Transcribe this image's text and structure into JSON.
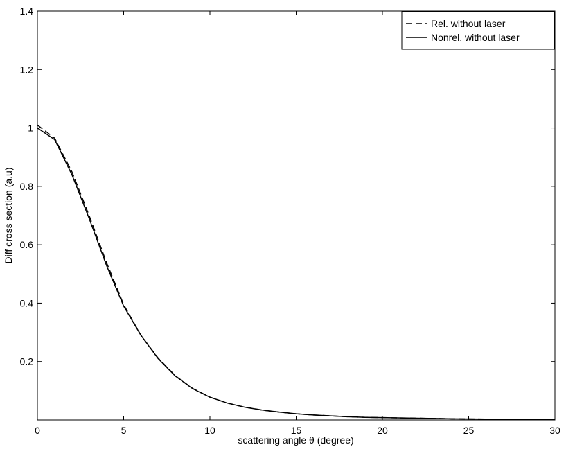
{
  "chart_data": {
    "type": "line",
    "xlabel": "scattering angle θ (degree)",
    "ylabel": "Diff cross section (a.u)",
    "x": [
      0,
      1,
      2,
      3,
      4,
      5,
      6,
      7,
      8,
      9,
      10,
      11,
      12,
      13,
      14,
      15,
      16,
      17,
      18,
      19,
      20,
      22,
      24,
      26,
      28,
      30
    ],
    "series": [
      {
        "name": "Rel. without laser",
        "color": "#000000",
        "linestyle": "dashed",
        "values": [
          1.01,
          0.965,
          0.85,
          0.7,
          0.54,
          0.395,
          0.29,
          0.212,
          0.151,
          0.108,
          0.078,
          0.058,
          0.044,
          0.034,
          0.027,
          0.021,
          0.017,
          0.014,
          0.011,
          0.009,
          0.008,
          0.006,
          0.004,
          0.003,
          0.003,
          0.002
        ]
      },
      {
        "name": "Nonrel. without laser",
        "color": "#000000",
        "linestyle": "solid",
        "values": [
          1.0,
          0.96,
          0.84,
          0.69,
          0.53,
          0.39,
          0.29,
          0.21,
          0.15,
          0.107,
          0.078,
          0.058,
          0.044,
          0.034,
          0.027,
          0.021,
          0.017,
          0.014,
          0.011,
          0.009,
          0.008,
          0.006,
          0.004,
          0.003,
          0.003,
          0.002
        ]
      }
    ],
    "xlim": [
      0,
      30
    ],
    "xticks": [
      0,
      5,
      10,
      15,
      20,
      25,
      30
    ],
    "ylim": [
      0,
      1.4
    ],
    "yticks": [
      0.2,
      0.4,
      0.6,
      0.8,
      1,
      1.2,
      1.4
    ],
    "legend": "upper-right",
    "grid": false
  }
}
